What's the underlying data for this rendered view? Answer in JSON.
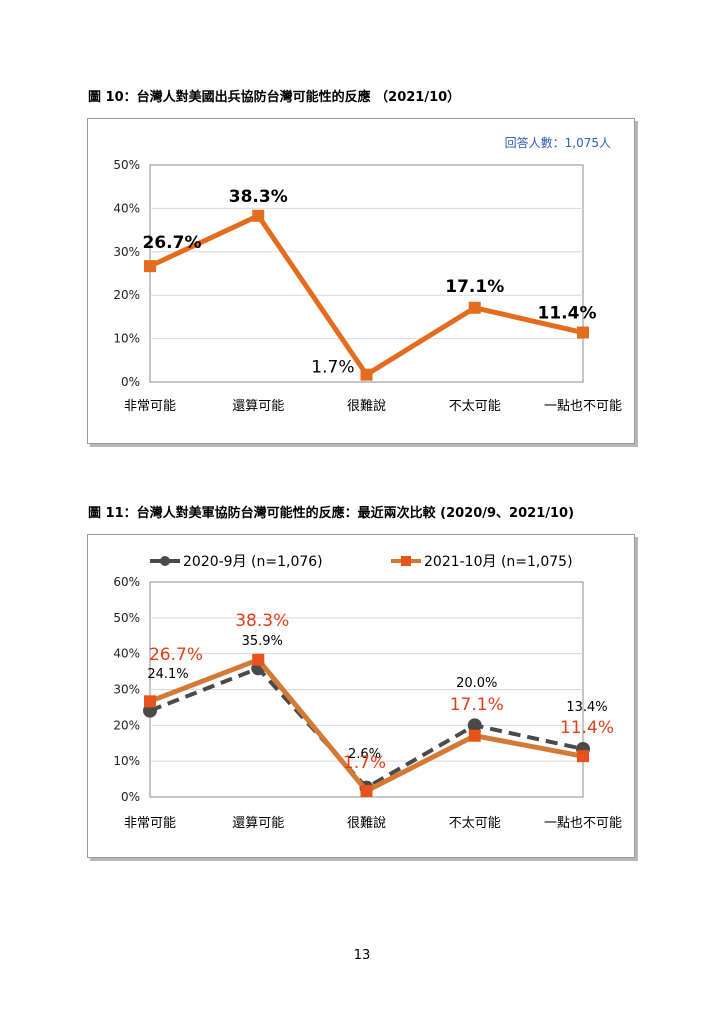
{
  "page_number": "13",
  "chart_data": [
    {
      "type": "line",
      "caption": "圖 10：台灣人對美國出兵協防台灣可能性的反應 （2021/10）",
      "note": "回答人數：1,075人",
      "categories": [
        "非常可能",
        "還算可能",
        "很難說",
        "不太可能",
        "一點也不可能"
      ],
      "series": [
        {
          "name": "",
          "values": [
            26.7,
            38.3,
            1.7,
            17.1,
            11.4
          ],
          "labels": [
            "26.7%",
            "38.3%",
            "1.7%",
            "17.1%",
            "11.4%"
          ],
          "color": "#e46c1e"
        }
      ],
      "y_ticks": [
        "0%",
        "10%",
        "20%",
        "30%",
        "40%",
        "50%"
      ],
      "ylim": [
        0,
        50
      ],
      "grid": true,
      "legend": "none"
    },
    {
      "type": "line",
      "caption": "圖 11：台灣人對美軍協防台灣可能性的反應：最近兩次比較 (2020/9、2021/10)",
      "categories": [
        "非常可能",
        "還算可能",
        "很難說",
        "不太可能",
        "一點也不可能"
      ],
      "series": [
        {
          "name": "2020-9月 (n=1,076)",
          "values": [
            24.1,
            35.9,
            2.6,
            20.0,
            13.4
          ],
          "labels": [
            "24.1%",
            "35.9%",
            "2.6%",
            "20.0%",
            "13.4%"
          ],
          "color": "#4a4a4a",
          "dash": true
        },
        {
          "name": "2021-10月 (n=1,075)",
          "values": [
            26.7,
            38.3,
            1.7,
            17.1,
            11.4
          ],
          "labels": [
            "26.7%",
            "38.3%",
            "1.7%",
            "17.1%",
            "11.4%"
          ],
          "color": "#d47a37",
          "label_color": "#e0401a"
        }
      ],
      "y_ticks": [
        "0%",
        "10%",
        "20%",
        "30%",
        "40%",
        "50%",
        "60%"
      ],
      "ylim": [
        0,
        60
      ],
      "grid": true,
      "legend": "top"
    }
  ]
}
